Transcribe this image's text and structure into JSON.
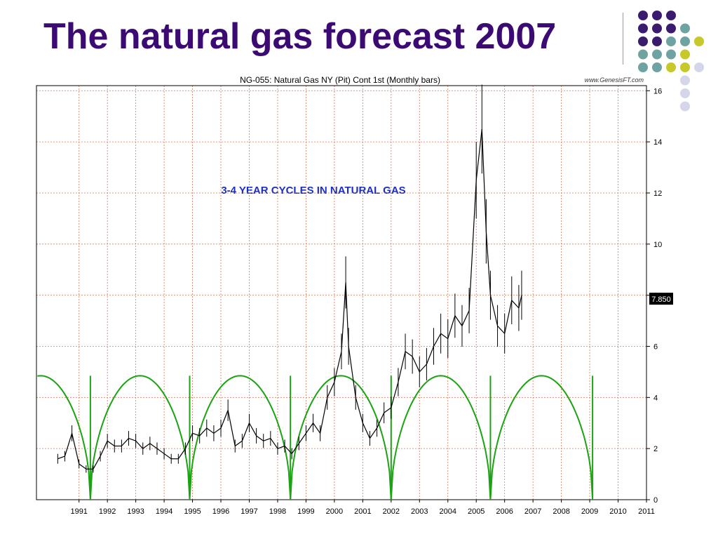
{
  "slide": {
    "title": "The natural gas forecast 2007"
  },
  "decor": {
    "dot_colors": [
      "#3b1b6e",
      "#6fa3a1",
      "#c7c92a",
      "#d6d6ea"
    ]
  },
  "chart_data": {
    "type": "line",
    "title": "NG-055:  Natural Gas NY (Pit) Cont 1st  (Monthly bars)",
    "source": "www.GenesisFT.com",
    "annotation": "3-4 YEAR CYCLES IN NATURAL GAS",
    "last_price_label": "7.850",
    "last_price": 7.85,
    "y_ticks": [
      0,
      2,
      4,
      6,
      8,
      10,
      12,
      14,
      16
    ],
    "y_tick_labels": [
      "0",
      "2",
      "4",
      "6",
      "8",
      "10",
      "12",
      "14",
      "16"
    ],
    "ylim": [
      0,
      16.2
    ],
    "xlim": [
      1990.0,
      2011.5
    ],
    "x_ticks": [
      "1991",
      "1992",
      "1993",
      "1994",
      "1995",
      "1996",
      "1997",
      "1998",
      "1999",
      "2000",
      "2001",
      "2002",
      "2003",
      "2004",
      "2005",
      "2006",
      "2007",
      "2008",
      "2009",
      "2010",
      "2011"
    ],
    "grid": true,
    "price_series": {
      "name": "Natural Gas (monthly bars)",
      "color": "#000000",
      "x": [
        1990.75,
        1991.0,
        1991.25,
        1991.5,
        1991.75,
        1992.0,
        1992.25,
        1992.5,
        1992.75,
        1993.0,
        1993.25,
        1993.5,
        1993.75,
        1994.0,
        1994.25,
        1994.5,
        1994.75,
        1995.0,
        1995.25,
        1995.5,
        1995.75,
        1996.0,
        1996.25,
        1996.5,
        1996.75,
        1997.0,
        1997.25,
        1997.5,
        1997.75,
        1998.0,
        1998.25,
        1998.5,
        1998.75,
        1999.0,
        1999.25,
        1999.5,
        1999.75,
        2000.0,
        2000.25,
        2000.5,
        2000.75,
        2000.9,
        2001.0,
        2001.25,
        2001.5,
        2001.75,
        2002.0,
        2002.25,
        2002.5,
        2002.75,
        2003.0,
        2003.25,
        2003.5,
        2003.75,
        2004.0,
        2004.25,
        2004.5,
        2004.75,
        2005.0,
        2005.25,
        2005.5,
        2005.7,
        2005.85,
        2006.0,
        2006.25,
        2006.5,
        2006.75,
        2007.0,
        2007.1
      ],
      "y": [
        1.6,
        1.7,
        2.6,
        1.4,
        1.2,
        1.2,
        1.7,
        2.3,
        2.1,
        2.1,
        2.4,
        2.3,
        2.0,
        2.2,
        2.0,
        1.8,
        1.6,
        1.6,
        2.0,
        2.6,
        2.5,
        2.8,
        2.6,
        2.8,
        3.5,
        2.1,
        2.3,
        3.0,
        2.5,
        2.3,
        2.4,
        2.0,
        2.1,
        1.8,
        2.2,
        2.6,
        3.0,
        2.6,
        4.0,
        4.6,
        5.8,
        8.5,
        6.0,
        4.0,
        3.0,
        2.4,
        2.8,
        3.4,
        3.6,
        4.6,
        5.8,
        5.6,
        5.0,
        5.3,
        6.0,
        6.5,
        6.3,
        7.2,
        6.8,
        7.4,
        12.5,
        14.5,
        10.5,
        8.0,
        6.8,
        6.5,
        7.8,
        7.5,
        8.0
      ]
    },
    "cycle_series": {
      "name": "Cycle",
      "color": "#1aa312",
      "low_points": [
        1991.9,
        1995.4,
        1998.95,
        2002.5,
        2006.0,
        2009.6
      ],
      "peak_value": 4.85
    }
  }
}
